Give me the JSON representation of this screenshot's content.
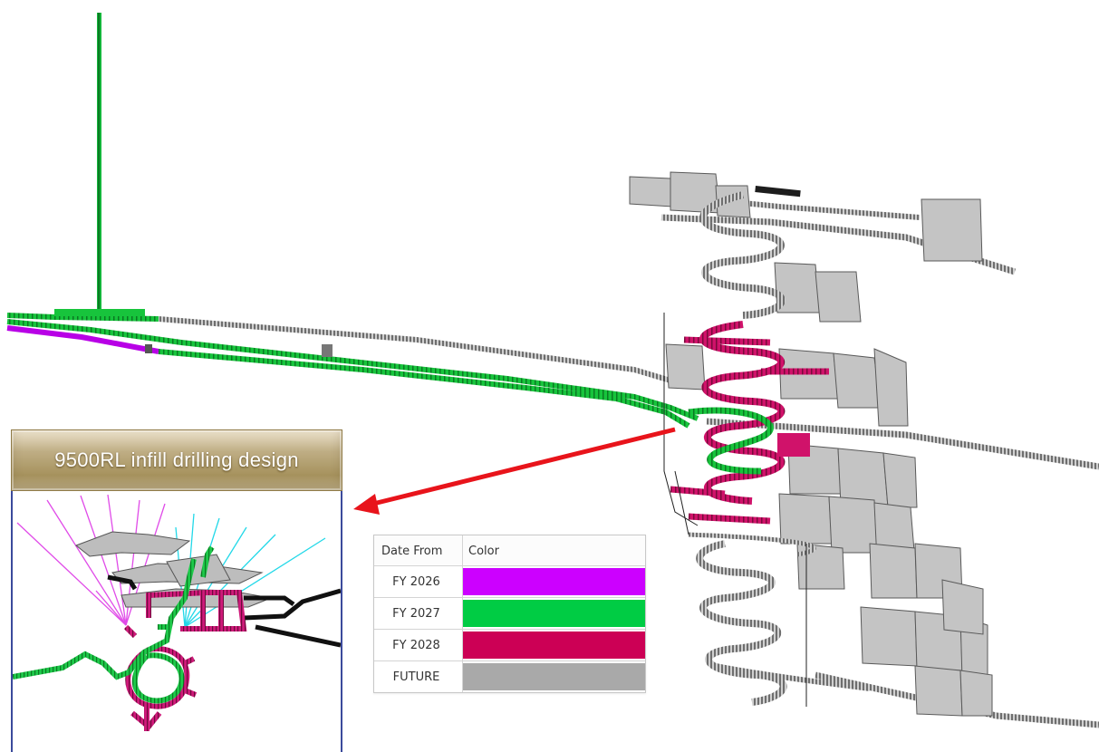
{
  "inset": {
    "title": "9500RL infill drilling design"
  },
  "legend": {
    "headers": {
      "date": "Date From",
      "color": "Color"
    },
    "rows": [
      {
        "label": "FY 2026",
        "color": "#cc00ff"
      },
      {
        "label": "FY 2027",
        "color": "#00cc44"
      },
      {
        "label": "FY 2028",
        "color": "#cc0055"
      },
      {
        "label": "FUTURE",
        "color": "#a9a9a9"
      }
    ]
  },
  "colors": {
    "arrow": "#e8141b",
    "frame": "#3b4a9c",
    "grey_solid": "#b5b5b5",
    "grey_dark": "#555555",
    "cyan_line": "#22d8e8",
    "magenta_line": "#e04be8"
  }
}
